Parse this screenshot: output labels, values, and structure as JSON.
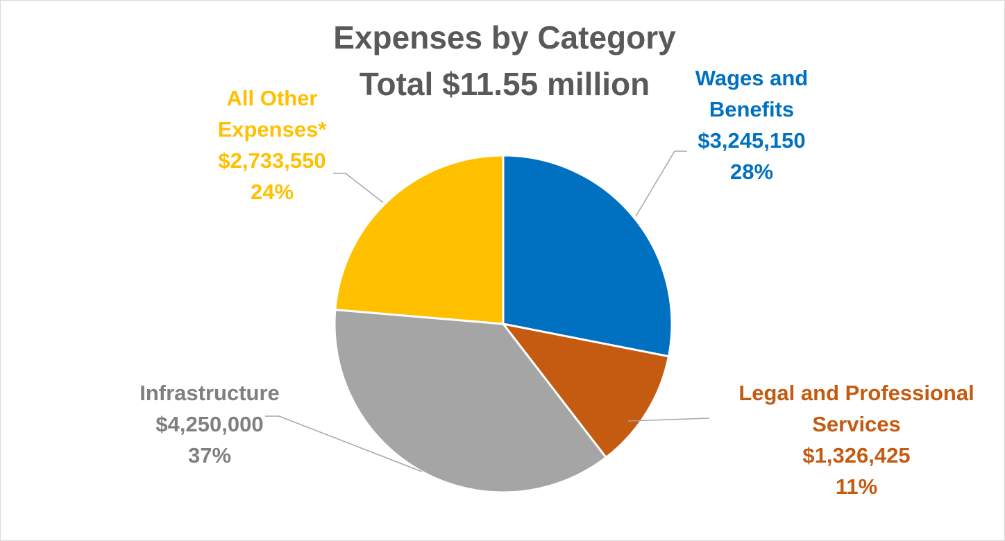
{
  "chart_data": {
    "type": "pie",
    "title": "Expenses by Category",
    "subtitle": "Total $11.55 million",
    "categories": [
      "Wages and Benefits",
      "Legal and Professional Services",
      "Infrastructure",
      "All Other Expenses*"
    ],
    "values": [
      3245150,
      1326425,
      4250000,
      2733550
    ],
    "percent_labels": [
      "28%",
      "11%",
      "37%",
      "24%"
    ],
    "value_labels": [
      "$3,245,150",
      "$1,326,425",
      "$4,250,000",
      "$2,733,550"
    ],
    "colors": [
      "#0070C0",
      "#C55A11",
      "#A5A5A5",
      "#FFC000"
    ],
    "start_angle_deg": 0,
    "direction": "clockwise",
    "legend": "none",
    "label_lines": [
      [
        "Wages and",
        "Benefits",
        "$3,245,150",
        "28%"
      ],
      [
        "Legal and Professional",
        "Services",
        "$1,326,425",
        "11%"
      ],
      [
        "Infrastructure",
        "$4,250,000",
        "37%"
      ],
      [
        "All Other",
        "Expenses*",
        "$2,733,550",
        "24%"
      ]
    ]
  }
}
